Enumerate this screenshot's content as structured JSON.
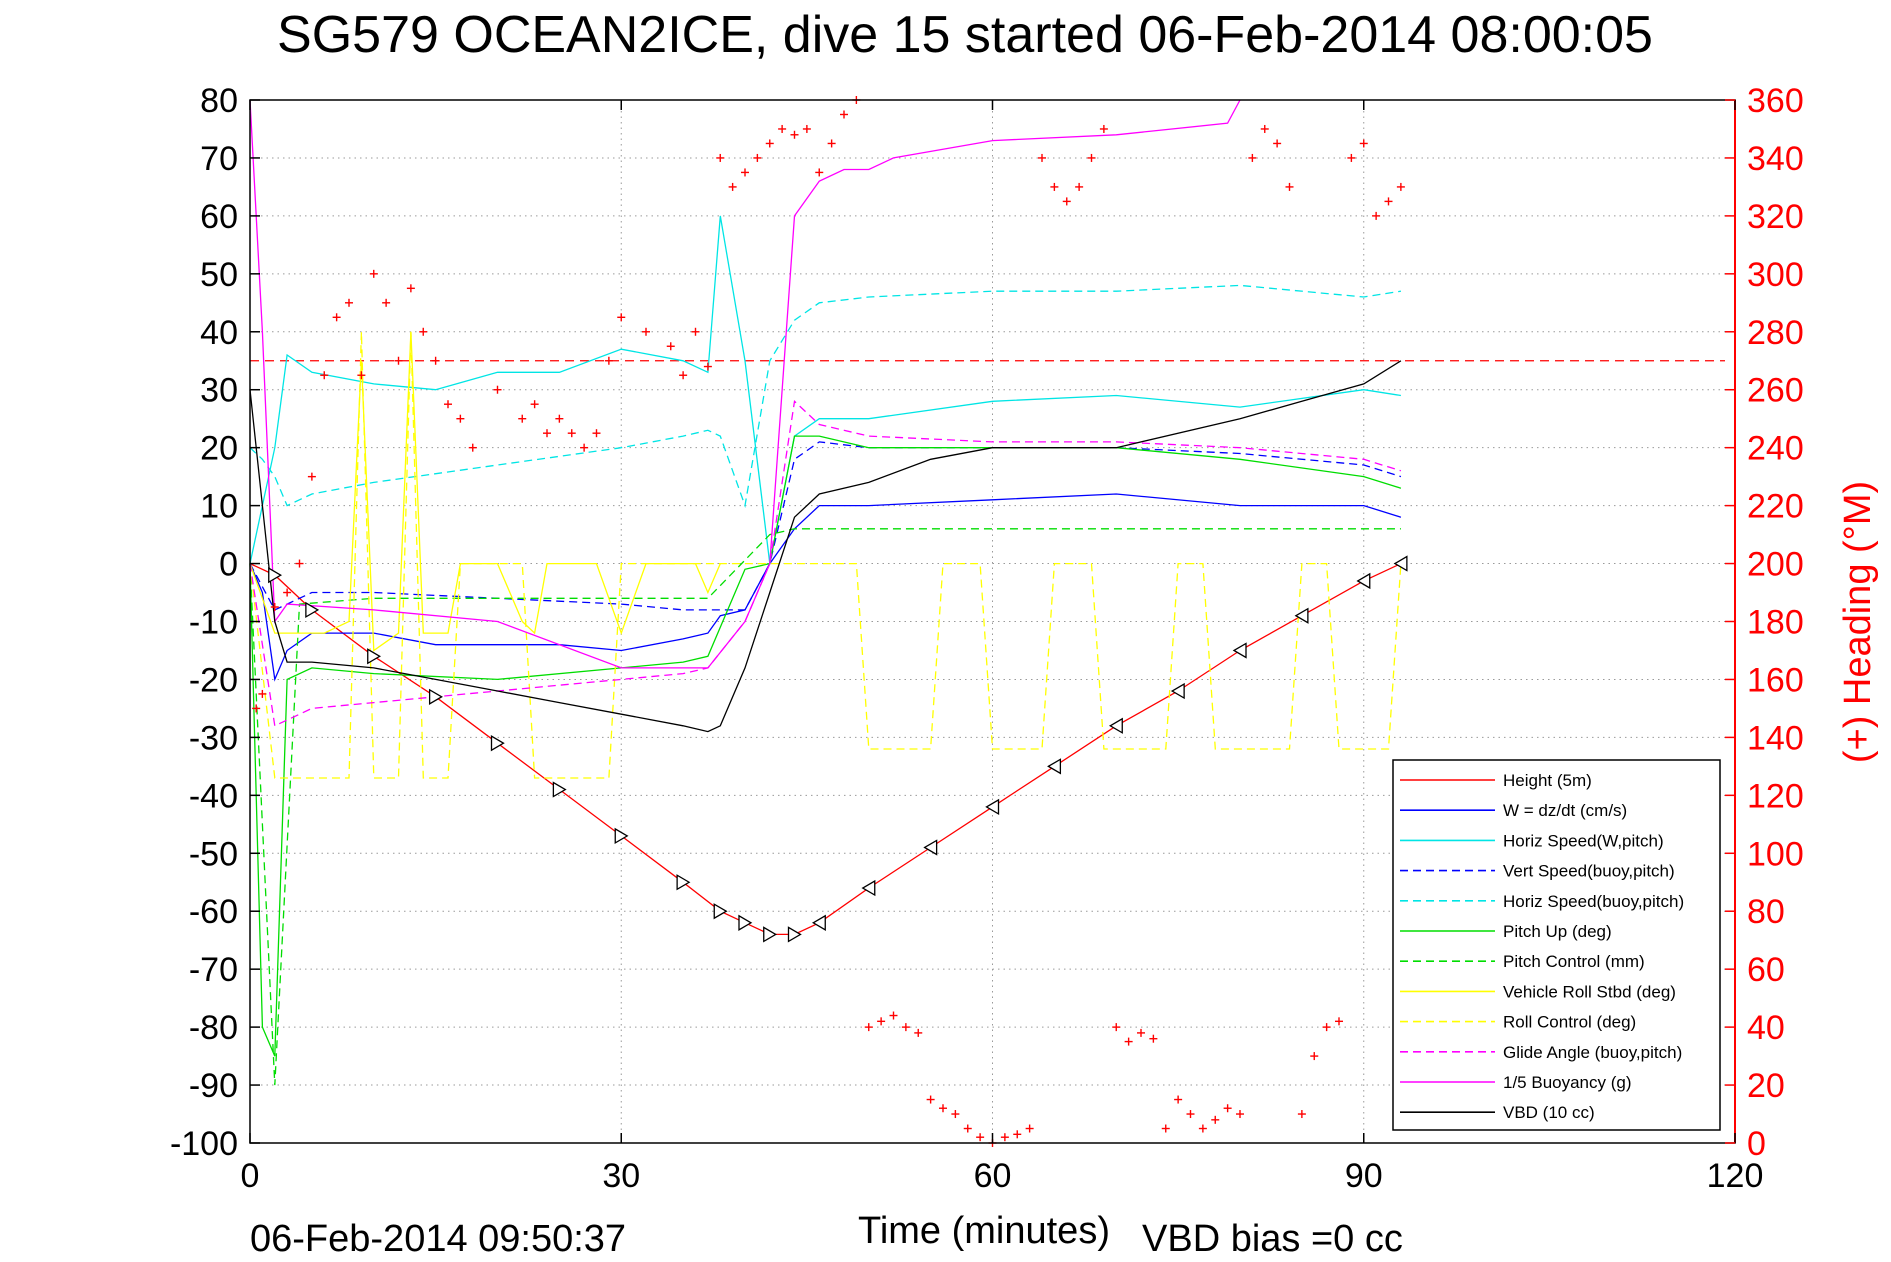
{
  "chart_data": {
    "type": "line",
    "title": "SG579 OCEAN2ICE, dive 15 started 06-Feb-2014 08:00:05",
    "xlabel": "Time (minutes)",
    "ylabel": "",
    "y2label": "(+) Heading (°M)",
    "xlim": [
      0,
      120
    ],
    "ylim": [
      -100,
      80
    ],
    "y2lim": [
      0,
      360
    ],
    "x_ticks": [
      "0",
      "30",
      "60",
      "90",
      "120"
    ],
    "y_ticks": [
      "80",
      "70",
      "60",
      "50",
      "40",
      "30",
      "20",
      "10",
      "0",
      "-10",
      "-20",
      "-30",
      "-40",
      "-50",
      "-60",
      "-70",
      "-80",
      "-90",
      "-100"
    ],
    "y2_ticks": [
      "360",
      "340",
      "320",
      "300",
      "280",
      "260",
      "240",
      "220",
      "200",
      "180",
      "160",
      "140",
      "120",
      "100",
      "80",
      "60",
      "40",
      "20",
      "0"
    ],
    "grid": true,
    "legend_position": "bottom-right",
    "footer_left": "06-Feb-2014 09:50:37",
    "footer_right": "VBD bias =0 cc",
    "heading_reference": 270,
    "series": [
      {
        "name": "Height (5m)",
        "color": "#ff0000",
        "dash": "solid",
        "x": [
          0,
          2,
          5,
          10,
          15,
          20,
          25,
          30,
          35,
          38,
          40,
          42,
          44,
          46,
          50,
          55,
          60,
          65,
          70,
          75,
          80,
          85,
          90,
          93
        ],
        "y": [
          0,
          -2,
          -8,
          -16,
          -23,
          -31,
          -39,
          -47,
          -55,
          -60,
          -62,
          -64,
          -64,
          -62,
          -56,
          -49,
          -42,
          -35,
          -28,
          -22,
          -15,
          -9,
          -3,
          0
        ]
      },
      {
        "name": "W = dz/dt (cm/s)",
        "color": "#0000ff",
        "dash": "solid",
        "x": [
          0,
          1,
          2,
          3,
          5,
          10,
          15,
          20,
          25,
          30,
          35,
          37,
          38,
          40,
          42,
          44,
          46,
          50,
          60,
          70,
          80,
          90,
          93
        ],
        "y": [
          0,
          -5,
          -20,
          -15,
          -12,
          -12,
          -14,
          -14,
          -14,
          -15,
          -13,
          -12,
          -9,
          -8,
          0,
          6,
          10,
          10,
          11,
          12,
          10,
          10,
          8
        ]
      },
      {
        "name": "Horiz Speed(W,pitch)",
        "color": "#00e5e5",
        "dash": "solid",
        "x": [
          0,
          1,
          2,
          3,
          5,
          10,
          15,
          20,
          25,
          30,
          35,
          37,
          38,
          40,
          42,
          44,
          46,
          50,
          60,
          70,
          80,
          90,
          93
        ],
        "y": [
          0,
          10,
          20,
          36,
          33,
          31,
          30,
          33,
          33,
          37,
          35,
          33,
          60,
          35,
          0,
          22,
          25,
          25,
          28,
          29,
          27,
          30,
          29
        ]
      },
      {
        "name": "Vert Speed(buoy,pitch)",
        "color": "#0000ff",
        "dash": "dashed",
        "x": [
          0,
          2,
          5,
          10,
          20,
          30,
          35,
          37,
          40,
          42,
          44,
          46,
          50,
          60,
          70,
          80,
          90,
          93
        ],
        "y": [
          0,
          -8,
          -5,
          -5,
          -6,
          -7,
          -8,
          -8,
          -8,
          0,
          18,
          21,
          20,
          20,
          20,
          19,
          17,
          15
        ]
      },
      {
        "name": "Horiz Speed(buoy,pitch)",
        "color": "#00e5e5",
        "dash": "dashed",
        "x": [
          0,
          1,
          2,
          3,
          5,
          10,
          20,
          30,
          35,
          37,
          38,
          40,
          42,
          44,
          46,
          50,
          60,
          70,
          80,
          90,
          93
        ],
        "y": [
          20,
          18,
          15,
          10,
          12,
          14,
          17,
          20,
          22,
          23,
          22,
          10,
          35,
          42,
          45,
          46,
          47,
          47,
          48,
          46,
          47
        ]
      },
      {
        "name": "Pitch Up (deg)",
        "color": "#00dd00",
        "dash": "solid",
        "x": [
          0,
          1,
          2,
          3,
          5,
          10,
          20,
          30,
          35,
          37,
          40,
          42,
          44,
          46,
          50,
          60,
          70,
          80,
          90,
          93
        ],
        "y": [
          0,
          -80,
          -85,
          -20,
          -18,
          -19,
          -20,
          -18,
          -17,
          -16,
          -1,
          0,
          22,
          22,
          20,
          20,
          20,
          18,
          15,
          13
        ]
      },
      {
        "name": "Pitch Control (mm)",
        "color": "#00dd00",
        "dash": "dashed",
        "x": [
          0,
          2,
          4,
          10,
          20,
          30,
          37,
          42,
          44,
          50,
          60,
          70,
          80,
          90,
          93
        ],
        "y": [
          0,
          -90,
          -7,
          -6,
          -6,
          -6,
          -6,
          5,
          6,
          6,
          6,
          6,
          6,
          6,
          6
        ]
      },
      {
        "name": "Vehicle Roll Stbd (deg)",
        "color": "#ffff00",
        "dash": "solid",
        "x": [
          0,
          2,
          4,
          6,
          8,
          9,
          10,
          12,
          13,
          14,
          16,
          17,
          18,
          20,
          22,
          23,
          24,
          26,
          28,
          30,
          32,
          34,
          36,
          37,
          38
        ],
        "y": [
          0,
          -12,
          -12,
          -12,
          -10,
          35,
          -15,
          -12,
          40,
          -12,
          -12,
          0,
          0,
          0,
          -10,
          -12,
          0,
          0,
          0,
          -12,
          0,
          0,
          0,
          -5,
          0
        ]
      },
      {
        "name": "Roll Control (deg)",
        "color": "#ffff00",
        "dash": "dashed",
        "x": [
          0,
          2,
          8,
          9,
          10,
          12,
          13,
          14,
          16,
          17,
          22,
          23,
          29,
          30,
          37,
          42,
          49,
          50,
          55,
          56,
          59,
          60,
          64,
          65,
          68,
          69,
          74,
          75,
          77,
          78,
          84,
          85,
          87,
          88,
          92,
          93
        ],
        "y": [
          0,
          -37,
          -37,
          40,
          -37,
          -37,
          40,
          -37,
          -37,
          0,
          0,
          -37,
          -37,
          0,
          0,
          0,
          0,
          -32,
          -32,
          0,
          0,
          -32,
          -32,
          0,
          0,
          -32,
          -32,
          0,
          0,
          -32,
          -32,
          0,
          0,
          -32,
          -32,
          0
        ]
      },
      {
        "name": "Glide Angle (buoy,pitch)",
        "color": "#ff00ff",
        "dash": "dashed",
        "x": [
          0,
          2,
          5,
          10,
          20,
          30,
          35,
          37,
          40,
          42,
          44,
          46,
          50,
          60,
          70,
          80,
          90,
          93
        ],
        "y": [
          0,
          -28,
          -25,
          -24,
          -22,
          -20,
          -19,
          -18,
          -10,
          0,
          28,
          24,
          22,
          21,
          21,
          20,
          18,
          16
        ]
      },
      {
        "name": "1/5 Buoyancy (g)",
        "color": "#ff00ff",
        "dash": "solid",
        "x": [
          0,
          1,
          2,
          3,
          10,
          20,
          30,
          35,
          37,
          40,
          42,
          44,
          46,
          48,
          50,
          52,
          60,
          70,
          79,
          80
        ],
        "y": [
          80,
          40,
          -10,
          -7,
          -8,
          -10,
          -18,
          -18,
          -18,
          -10,
          0,
          60,
          66,
          68,
          68,
          70,
          73,
          74,
          76,
          80
        ]
      },
      {
        "name": "VBD (10 cc)",
        "color": "#000000",
        "dash": "solid",
        "x": [
          0,
          2,
          3,
          5,
          10,
          15,
          20,
          25,
          30,
          35,
          37,
          38,
          40,
          42,
          44,
          46,
          50,
          55,
          60,
          70,
          80,
          85,
          90,
          93
        ],
        "y": [
          30,
          -10,
          -17,
          -17,
          -18,
          -20,
          -22,
          -24,
          -26,
          -28,
          -29,
          -28,
          -18,
          -5,
          8,
          12,
          14,
          18,
          20,
          20,
          25,
          28,
          31,
          35
        ]
      }
    ],
    "heading_points": {
      "name": "Heading",
      "color": "#ff0000",
      "x": [
        0.5,
        1,
        2,
        3,
        4,
        5,
        6,
        7,
        8,
        9,
        10,
        11,
        12,
        13,
        14,
        15,
        16,
        17,
        18,
        20,
        22,
        23,
        24,
        25,
        26,
        27,
        28,
        29,
        30,
        32,
        34,
        35,
        36,
        37,
        38,
        39,
        40,
        41,
        42,
        43,
        44,
        45,
        46,
        47,
        48,
        49,
        50,
        51,
        52,
        53,
        54,
        55,
        56,
        57,
        58,
        59,
        60,
        61,
        62,
        63,
        64,
        65,
        66,
        67,
        68,
        69,
        70,
        71,
        72,
        73,
        74,
        75,
        76,
        77,
        78,
        79,
        80,
        81,
        82,
        83,
        84,
        85,
        86,
        87,
        88,
        89,
        90,
        91,
        92,
        93
      ],
      "y": [
        150,
        155,
        185,
        190,
        200,
        230,
        265,
        285,
        290,
        265,
        300,
        290,
        270,
        295,
        280,
        270,
        255,
        250,
        240,
        260,
        250,
        255,
        245,
        250,
        245,
        240,
        245,
        270,
        285,
        280,
        275,
        265,
        280,
        268,
        340,
        330,
        335,
        340,
        345,
        350,
        348,
        350,
        335,
        345,
        355,
        360,
        40,
        42,
        44,
        40,
        38,
        15,
        12,
        10,
        5,
        2,
        0,
        2,
        3,
        5,
        340,
        330,
        325,
        330,
        340,
        350,
        40,
        35,
        38,
        36,
        5,
        15,
        10,
        5,
        8,
        12,
        10,
        340,
        350,
        345,
        330,
        10,
        30,
        40,
        42,
        340,
        345,
        320,
        325,
        330
      ]
    }
  }
}
